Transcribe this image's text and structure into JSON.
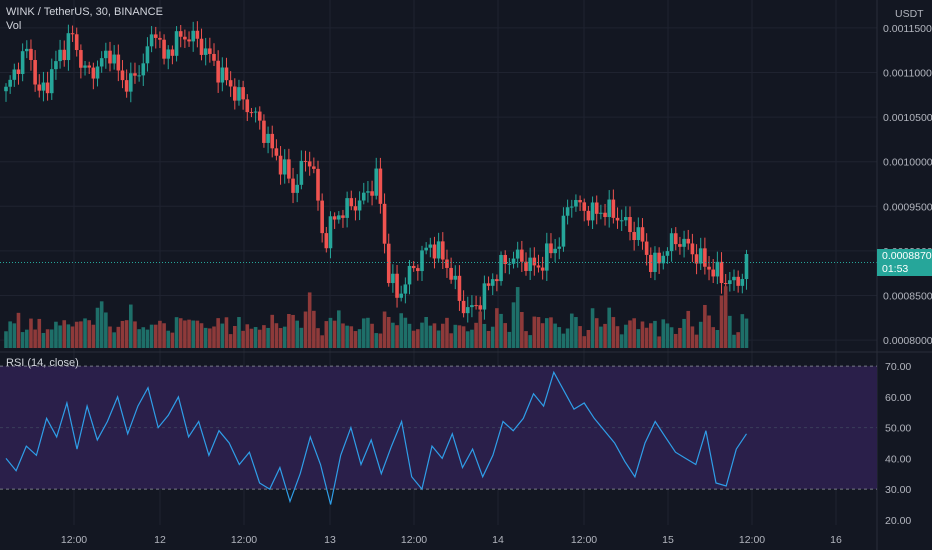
{
  "header": {
    "symbol": "WINK / TetherUS, 30, BINANCE",
    "volume_label": "Vol",
    "rsi_label": "RSI (14, close)",
    "currency": "USDT"
  },
  "last_price": {
    "value": "0.0008870",
    "countdown": "01:53"
  },
  "colors": {
    "background": "#131722",
    "up": "#26a69a",
    "down": "#ef5350",
    "vol_up": "#1e6f69",
    "vol_down": "#8e3a3a",
    "rsi_line": "#2f9ee8",
    "rsi_band": "#2a1f4a",
    "grid": "#1f2330",
    "price_tag": "#26a69a",
    "text": "#b2b5be"
  },
  "chart_data": [
    {
      "type": "candlestick",
      "title": "WINK / TetherUS, 30, BINANCE",
      "y_unit": "USDT",
      "y_ticks": [
        "0.0011500",
        "0.0011000",
        "0.0010500",
        "0.0010000",
        "0.0009500",
        "0.0009000",
        "0.0008500",
        "0.0008000"
      ],
      "x_ticks": [
        "12:00",
        "12",
        "12:00",
        "13",
        "12:00",
        "14",
        "12:00",
        "15",
        "12:00",
        "16"
      ],
      "ylim": [
        0.00078,
        0.00117
      ],
      "grid": true,
      "close_path": [
        [
          0,
          0.001078
        ],
        [
          6,
          0.00111
        ],
        [
          12,
          0.001126
        ],
        [
          16,
          0.001072
        ],
        [
          21,
          0.00109
        ],
        [
          27,
          0.00112
        ],
        [
          33,
          0.001142
        ],
        [
          40,
          0.001098
        ],
        [
          46,
          0.001106
        ],
        [
          52,
          0.001125
        ],
        [
          58,
          0.00109
        ],
        [
          64,
          0.00109
        ],
        [
          71,
          0.001124
        ],
        [
          75,
          0.001152
        ],
        [
          79,
          0.001112
        ],
        [
          84,
          0.001135
        ],
        [
          92,
          0.001142
        ],
        [
          99,
          0.001128
        ],
        [
          104,
          0.00111
        ],
        [
          109,
          0.001094
        ],
        [
          116,
          0.001075
        ],
        [
          122,
          0.00106
        ],
        [
          128,
          0.00104
        ],
        [
          134,
          0.00101
        ],
        [
          140,
          0.00099
        ],
        [
          144,
          0.000968
        ],
        [
          148,
          0.000992
        ],
        [
          153,
          0.001008
        ],
        [
          159,
          0.000908
        ],
        [
          163,
          0.00093
        ],
        [
          168,
          0.000945
        ],
        [
          173,
          0.00095
        ],
        [
          180,
          0.00096
        ],
        [
          186,
          0.000985
        ],
        [
          191,
          0.00088
        ],
        [
          196,
          0.000848
        ],
        [
          201,
          0.00087
        ],
        [
          207,
          0.00089
        ],
        [
          213,
          0.000908
        ],
        [
          218,
          0.000895
        ],
        [
          223,
          0.000875
        ],
        [
          228,
          0.00084
        ],
        [
          233,
          0.000832
        ],
        [
          239,
          0.00085
        ],
        [
          244,
          0.00087
        ],
        [
          250,
          0.000888
        ],
        [
          255,
          0.000894
        ],
        [
          260,
          0.000888
        ],
        [
          266,
          0.00088
        ],
        [
          272,
          0.000898
        ],
        [
          278,
          0.000912
        ],
        [
          282,
          0.00096
        ],
        [
          287,
          0.00095
        ],
        [
          294,
          0.000942
        ],
        [
          300,
          0.000946
        ],
        [
          306,
          0.00094
        ],
        [
          312,
          0.000926
        ],
        [
          318,
          0.000915
        ],
        [
          324,
          0.00088
        ],
        [
          330,
          0.0009
        ],
        [
          336,
          0.000914
        ],
        [
          342,
          0.000904
        ],
        [
          348,
          0.00089
        ],
        [
          354,
          0.000878
        ],
        [
          360,
          0.000868
        ],
        [
          366,
          0.000862
        ],
        [
          371,
          0.000886
        ]
      ]
    },
    {
      "type": "bar",
      "title": "Vol",
      "values_relative": [
        0.45,
        0.5,
        0.4,
        0.6,
        0.35,
        0.4,
        0.5,
        0.3,
        0.55,
        0.4,
        0.35,
        0.3,
        0.45,
        0.5,
        0.6,
        0.4,
        0.35,
        0.5,
        0.7,
        0.55,
        0.45,
        0.4,
        0.9,
        1.0,
        0.6,
        0.35,
        0.3,
        0.55,
        0.5,
        0.45,
        0.75,
        0.6,
        0.4,
        0.35,
        0.3,
        0.45,
        0.6,
        0.5,
        0.4,
        0.3,
        0.35,
        0.65,
        0.5,
        0.45,
        0.55,
        0.7,
        0.5,
        0.4,
        0.35,
        0.45
      ]
    },
    {
      "type": "line",
      "title": "RSI (14, close)",
      "y_ticks": [
        "70.00",
        "60.00",
        "50.00",
        "40.00",
        "30.00",
        "20.00"
      ],
      "ylim": [
        18,
        72
      ],
      "band": [
        30,
        70
      ],
      "values": [
        40,
        36,
        44,
        41,
        53,
        47,
        58,
        43,
        57,
        46,
        52,
        60,
        48,
        57,
        63,
        50,
        54,
        60,
        47,
        52,
        41,
        49,
        45,
        38,
        42,
        32,
        30,
        37,
        26,
        35,
        47,
        38,
        25,
        41,
        50,
        38,
        46,
        35,
        44,
        52,
        34,
        30,
        44,
        40,
        48,
        37,
        43,
        34,
        41,
        52,
        49,
        53,
        61,
        57,
        68,
        62,
        56,
        58,
        53,
        49,
        45,
        39,
        34,
        45,
        52,
        47,
        42,
        40,
        38,
        49,
        32,
        31,
        43,
        48
      ]
    }
  ]
}
